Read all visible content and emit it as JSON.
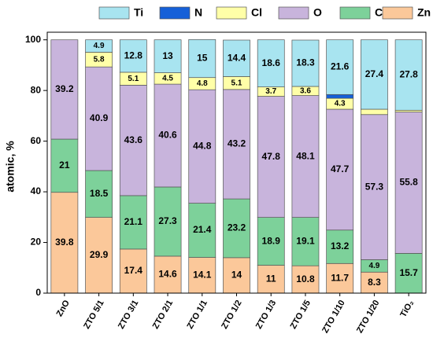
{
  "chart_data": {
    "type": "stacked_bar",
    "ylabel": "atomic, %",
    "categories": [
      "ZnO",
      "ZTO 5/1",
      "ZTO 3/1",
      "ZTO 2/1",
      "ZTO 1/1",
      "ZTO 1/2",
      "ZTO 1/3",
      "ZTO 1/5",
      "ZTO 1/10",
      "ZTO 1/20",
      "TiO₂"
    ],
    "series": [
      {
        "name": "Zn",
        "color": "#fbc89a",
        "values": [
          39.8,
          29.9,
          17.4,
          14.6,
          14.1,
          14,
          11,
          10.8,
          11.7,
          8.3,
          null
        ]
      },
      {
        "name": "C",
        "color": "#7dd19a",
        "values": [
          21,
          18.5,
          21.1,
          27.3,
          21.4,
          23.2,
          18.9,
          19.1,
          13.2,
          4.9,
          15.7
        ]
      },
      {
        "name": "O",
        "color": "#c8b4dc",
        "values": [
          39.2,
          40.9,
          43.6,
          40.6,
          44.8,
          43.2,
          47.8,
          48.1,
          47.7,
          57.3,
          55.8
        ]
      },
      {
        "name": "Cl",
        "color": "#ffffa8",
        "values": [
          null,
          5.8,
          5.1,
          4.5,
          4.8,
          5.1,
          3.7,
          3.6,
          4.3,
          2.1,
          0.7
        ]
      },
      {
        "name": "N",
        "color": "#1560d8",
        "values": [
          null,
          null,
          null,
          null,
          null,
          null,
          null,
          null,
          1.5,
          null,
          null
        ]
      },
      {
        "name": "Ti",
        "color": "#a8e4f0",
        "values": [
          null,
          4.9,
          12.8,
          13,
          15,
          14.4,
          18.6,
          18.3,
          21.6,
          27.4,
          27.8
        ]
      }
    ],
    "ylim": [
      0,
      103
    ],
    "yticks": [
      0,
      20,
      40,
      60,
      80,
      100
    ]
  }
}
